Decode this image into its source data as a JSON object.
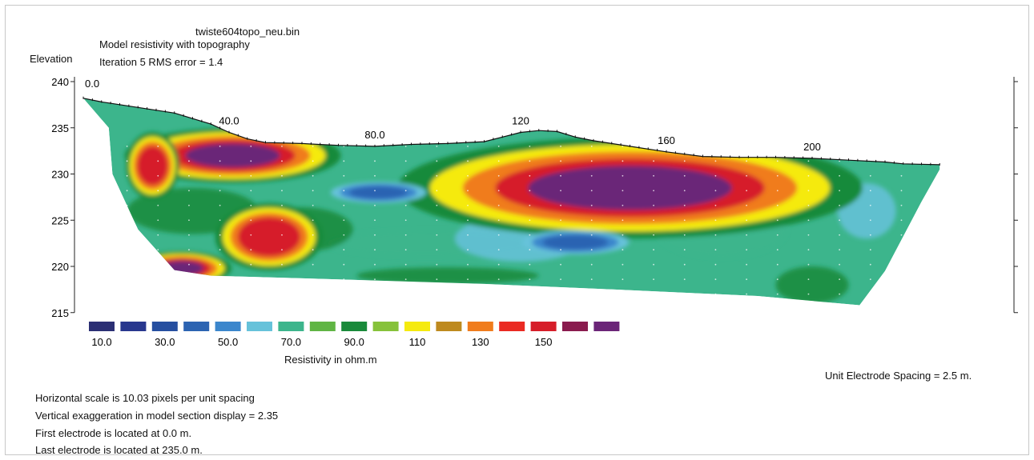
{
  "header": {
    "filename": "twiste604topo_neu.bin",
    "line1": "Model resistivity with topography",
    "line2": "Iteration 5 RMS error = 1.4"
  },
  "chart_data": {
    "type": "heatmap",
    "title": "Model resistivity with topography",
    "ylabel": "Elevation",
    "ylim": [
      215,
      240
    ],
    "yticks": [
      "240",
      "235",
      "230",
      "225",
      "220",
      "215"
    ],
    "xticks": [
      {
        "x": 0,
        "label": "0.0"
      },
      {
        "x": 40,
        "label": "40.0"
      },
      {
        "x": 80,
        "label": "80.0"
      },
      {
        "x": 120,
        "label": "120"
      },
      {
        "x": 160,
        "label": "160"
      },
      {
        "x": 200,
        "label": "200"
      }
    ],
    "topography": [
      [
        0,
        238.2
      ],
      [
        5,
        237.8
      ],
      [
        15,
        237.2
      ],
      [
        25,
        236.6
      ],
      [
        30,
        236.0
      ],
      [
        35,
        235.4
      ],
      [
        40,
        234.5
      ],
      [
        45,
        233.8
      ],
      [
        50,
        233.4
      ],
      [
        60,
        233.3
      ],
      [
        70,
        233.1
      ],
      [
        80,
        233.0
      ],
      [
        90,
        233.2
      ],
      [
        100,
        233.3
      ],
      [
        110,
        233.5
      ],
      [
        115,
        234.0
      ],
      [
        120,
        234.5
      ],
      [
        125,
        234.7
      ],
      [
        130,
        234.6
      ],
      [
        135,
        234.0
      ],
      [
        140,
        233.6
      ],
      [
        150,
        233.0
      ],
      [
        160,
        232.4
      ],
      [
        170,
        231.9
      ],
      [
        180,
        231.8
      ],
      [
        190,
        231.8
      ],
      [
        200,
        231.7
      ],
      [
        210,
        231.5
      ],
      [
        220,
        231.3
      ],
      [
        225,
        231.1
      ],
      [
        235,
        231.0
      ]
    ],
    "anomalies": [
      {
        "x": 150,
        "y": 228.5,
        "value": 165
      },
      {
        "x": 41,
        "y": 232.0,
        "value": 165
      },
      {
        "x": 19,
        "y": 230.9,
        "value": 150
      },
      {
        "x": 51,
        "y": 223.2,
        "value": 150
      },
      {
        "x": 27,
        "y": 219.8,
        "value": 165
      },
      {
        "x": 81,
        "y": 228.0,
        "value": 40
      },
      {
        "x": 135,
        "y": 222.6,
        "value": 40
      }
    ],
    "legend": {
      "title": "Resistivity in ohm.m",
      "colors": [
        "#2b2f74",
        "#28378e",
        "#264fa0",
        "#2c64b2",
        "#3b86cc",
        "#66c2da",
        "#3cb58c",
        "#60b544",
        "#198a3a",
        "#86c23a",
        "#f5ea0f",
        "#be8a1e",
        "#f07c1c",
        "#ea2a22",
        "#d61d29",
        "#8a1b4e",
        "#6b2578"
      ],
      "labels": [
        "10.0",
        "30.0",
        "50.0",
        "70.0",
        "90.0",
        "110",
        "130",
        "150"
      ]
    }
  },
  "footer": {
    "unit_spacing": "Unit Electrode Spacing = 2.5 m.",
    "scale": "Horizontal scale is 10.03 pixels per unit spacing",
    "exaggeration": "Vertical exaggeration in model section display = 2.35",
    "first_electrode": "First electrode is located at 0.0  m.",
    "last_electrode": "Last electrode is located at 235.0 m."
  }
}
